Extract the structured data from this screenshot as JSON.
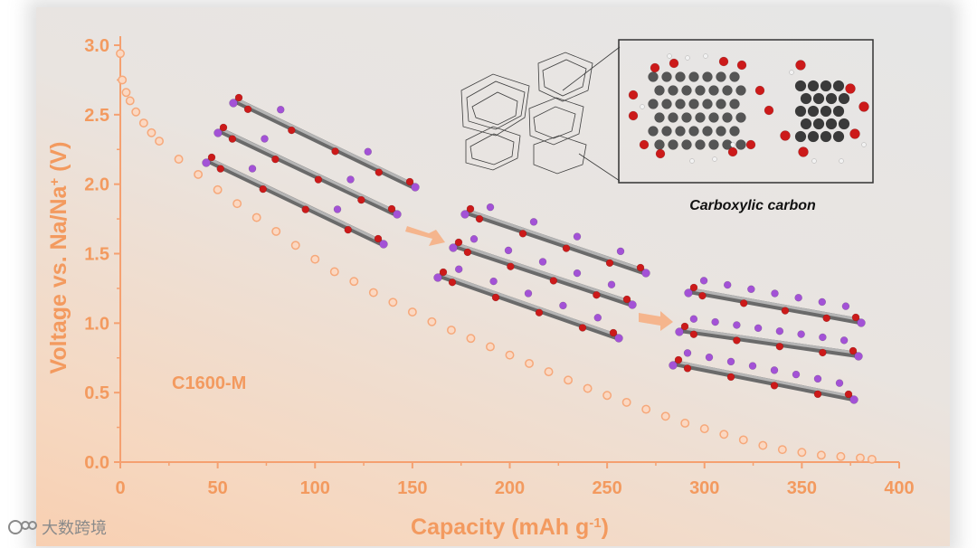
{
  "chart_data": {
    "type": "scatter",
    "title": "",
    "xlabel": "Capacity (mAh g",
    "xlabel_sup": "-1",
    "xlabel_end": ")",
    "ylabel": "Voltage vs. Na/Na",
    "ylabel_sup": "+",
    "ylabel_end": " (V)",
    "xlim": [
      0,
      400
    ],
    "ylim": [
      0,
      3.0
    ],
    "xticks": [
      "0",
      "50",
      "100",
      "150",
      "200",
      "250",
      "300",
      "350",
      "400"
    ],
    "yticks": [
      "0.0",
      "0.5",
      "1.0",
      "1.5",
      "2.0",
      "2.5",
      "3.0"
    ],
    "series": [
      {
        "name": "C1600-M",
        "x": [
          0,
          1,
          3,
          5,
          8,
          12,
          16,
          20,
          30,
          40,
          50,
          60,
          70,
          80,
          90,
          100,
          110,
          120,
          130,
          140,
          150,
          160,
          170,
          180,
          190,
          200,
          210,
          220,
          230,
          240,
          250,
          260,
          270,
          280,
          290,
          300,
          310,
          320,
          330,
          340,
          350,
          360,
          370,
          380,
          386
        ],
        "y": [
          2.94,
          2.75,
          2.66,
          2.6,
          2.52,
          2.44,
          2.37,
          2.31,
          2.18,
          2.07,
          1.96,
          1.86,
          1.76,
          1.66,
          1.56,
          1.46,
          1.37,
          1.3,
          1.22,
          1.15,
          1.08,
          1.01,
          0.95,
          0.89,
          0.83,
          0.77,
          0.71,
          0.65,
          0.59,
          0.53,
          0.48,
          0.43,
          0.38,
          0.33,
          0.28,
          0.24,
          0.2,
          0.16,
          0.12,
          0.09,
          0.07,
          0.05,
          0.04,
          0.03,
          0.02
        ]
      }
    ],
    "annotations": [
      "C1600-M",
      "Carboxylic carbon"
    ],
    "colors": {
      "axis": "#f5a070",
      "label": "#f39a5f",
      "marker": "#f6a87a",
      "marker_fill": "#fbd8c2"
    }
  },
  "watermark": {
    "text": "大数跨境",
    "icon": "logo-icon"
  }
}
